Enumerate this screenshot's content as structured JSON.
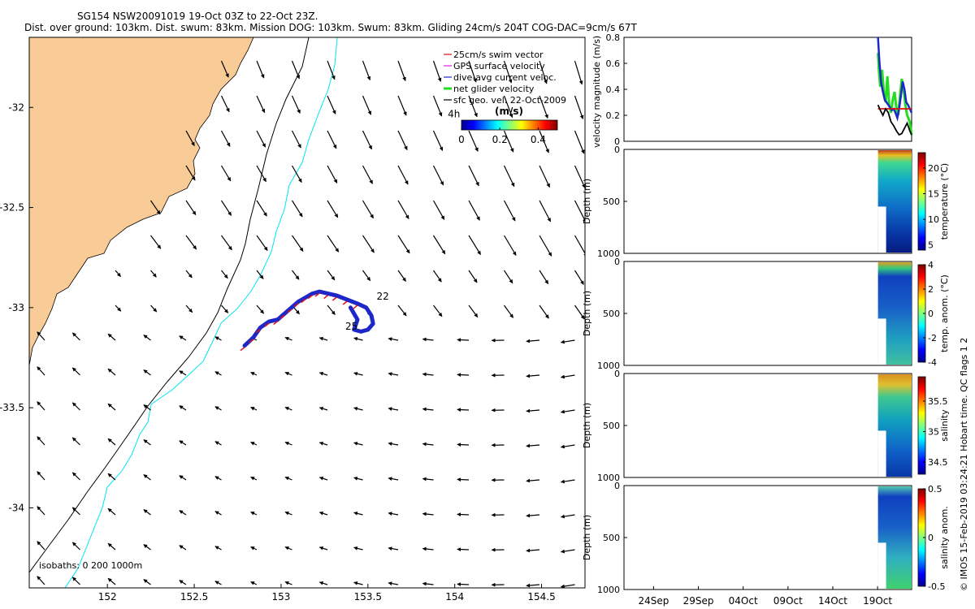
{
  "title_line1": "SG154 NSW20091019 19-Oct 03Z to 22-Oct 23Z.",
  "title_line2": "Dist. over ground: 103km. Dist. swum: 83km. Mission DOG: 103km. Swum: 83km. Gliding 24cm/s 204T COG-DAC=9cm/s 67T",
  "side_caption": "© IMOS 15-Feb-2019 03:24:21 Hobart time. QC flags 1  2",
  "colors": {
    "land": "#F9CB96",
    "isobath_shallow": "#00E5EE",
    "isobath_deep": "#000000",
    "track_blue": "#1E28C8",
    "track_red": "#DD1111",
    "green": "#22DD22"
  },
  "chart_data": [
    {
      "type": "scatter",
      "name": "map",
      "xlim": [
        151.55,
        154.75
      ],
      "ylim": [
        -34.4,
        -31.65
      ],
      "xticks": [
        "152",
        "152.5",
        "153",
        "153.5",
        "154",
        "154.5"
      ],
      "xtick_values": [
        152,
        152.5,
        153,
        153.5,
        154,
        154.5
      ],
      "yticks": [
        "-32",
        "-32.5",
        "-33",
        "-33.5",
        "-34"
      ],
      "ytick_values": [
        -32,
        -32.5,
        -33,
        -33.5,
        -34
      ],
      "legend": [
        {
          "label": "25cm/s swim vector",
          "color": "#DD1111"
        },
        {
          "label": "GPS surface velocity",
          "color": "#E020E0"
        },
        {
          "label": "dive-avg current veloc.",
          "color": "#1E28C8"
        },
        {
          "label": "net glider velocity",
          "color": "#22DD22"
        },
        {
          "label": "sfc geo. vel. 22-Oct-2009",
          "color": "#000000"
        }
      ],
      "colorbar": {
        "label": "(m/s)",
        "ticks": [
          "0",
          "0.2",
          "0.4"
        ],
        "tick_values": [
          0,
          0.2,
          0.4
        ],
        "range": [
          0,
          0.5
        ]
      },
      "isobath_label": "isobaths: 0   200  1000m",
      "track_labels": [
        {
          "text": "22",
          "lon": 153.55,
          "lat": -32.96
        },
        {
          "text": "25",
          "lon": 153.37,
          "lat": -33.11
        },
        {
          "text": "4h",
          "lon": 153.96,
          "lat": -32.05
        }
      ],
      "track": [
        [
          152.79,
          -33.19
        ],
        [
          152.84,
          -33.15
        ],
        [
          152.88,
          -33.1
        ],
        [
          152.93,
          -33.07
        ],
        [
          152.98,
          -33.06
        ],
        [
          153.02,
          -33.03
        ],
        [
          153.06,
          -33.0
        ],
        [
          153.1,
          -32.97
        ],
        [
          153.14,
          -32.95
        ],
        [
          153.18,
          -32.93
        ],
        [
          153.22,
          -32.92
        ],
        [
          153.27,
          -32.93
        ],
        [
          153.32,
          -32.94
        ],
        [
          153.38,
          -32.96
        ],
        [
          153.44,
          -32.98
        ],
        [
          153.49,
          -33.0
        ],
        [
          153.52,
          -33.04
        ],
        [
          153.53,
          -33.08
        ],
        [
          153.5,
          -33.11
        ],
        [
          153.46,
          -33.12
        ],
        [
          153.42,
          -33.11
        ],
        [
          153.44,
          -33.06
        ],
        [
          153.4,
          -33.0
        ]
      ]
    },
    {
      "type": "line",
      "name": "velocity",
      "ylabel": "velocity magnitude (m/s)",
      "ylim": [
        0,
        0.8
      ],
      "yticks": [
        "0",
        "0.2",
        "0.4",
        "0.6",
        "0.8"
      ],
      "ytick_values": [
        0,
        0.2,
        0.4,
        0.6,
        0.8
      ],
      "x_dates": [
        "24Sep",
        "29Sep",
        "04Oct",
        "09Oct",
        "14Oct",
        "19Oct"
      ],
      "x_date_days": [
        0,
        5,
        10,
        15,
        20,
        25
      ],
      "x_day_range": [
        -3.3,
        28.8
      ],
      "series": [
        {
          "name": "net glider velocity",
          "color": "#22DD22",
          "x": [
            25.05,
            25.15,
            25.3,
            25.5,
            25.7,
            25.9,
            26.1,
            26.3,
            26.5,
            26.7,
            26.9,
            27.1,
            27.3,
            27.5,
            27.7,
            27.9,
            28.1,
            28.3,
            28.6,
            28.8
          ],
          "y": [
            0.68,
            0.55,
            0.42,
            0.55,
            0.38,
            0.3,
            0.5,
            0.28,
            0.22,
            0.32,
            0.38,
            0.25,
            0.2,
            0.35,
            0.48,
            0.4,
            0.28,
            0.2,
            0.15,
            0.05
          ]
        },
        {
          "name": "dive-avg current veloc.",
          "color": "#1E28C8",
          "x": [
            25.05,
            25.2,
            25.4,
            25.6,
            25.8,
            26.0,
            26.2,
            26.4,
            26.6,
            26.8,
            27.0,
            27.2,
            27.4,
            27.6,
            27.8,
            28.0,
            28.2,
            28.4,
            28.6,
            28.8
          ],
          "y": [
            0.8,
            0.62,
            0.45,
            0.38,
            0.32,
            0.3,
            0.28,
            0.26,
            0.24,
            0.25,
            0.22,
            0.18,
            0.25,
            0.35,
            0.46,
            0.4,
            0.3,
            0.28,
            0.25,
            0.22
          ]
        },
        {
          "name": "swim",
          "color": "#DD1111",
          "x": [
            25.05,
            28.8
          ],
          "y": [
            0.25,
            0.25
          ]
        },
        {
          "name": "sfc geo",
          "color": "#000000",
          "x": [
            25.05,
            25.3,
            25.6,
            25.9,
            26.2,
            26.5,
            26.8,
            27.1,
            27.4,
            27.7,
            28.0,
            28.3,
            28.6,
            28.8
          ],
          "y": [
            0.28,
            0.24,
            0.2,
            0.25,
            0.22,
            0.15,
            0.12,
            0.08,
            0.05,
            0.06,
            0.1,
            0.14,
            0.08,
            0.05
          ]
        }
      ]
    },
    {
      "type": "heatmap",
      "name": "temperature",
      "ylabel": "Depth (m)",
      "cblabel": "temperature (°C)",
      "ylim": [
        1000,
        0
      ],
      "yticks": [
        "0",
        "500",
        "1000"
      ],
      "clim": [
        4,
        23
      ],
      "cbticks": [
        "5",
        "10",
        "15",
        "20"
      ],
      "cbtick_values": [
        5,
        10,
        15,
        20
      ]
    },
    {
      "type": "heatmap",
      "name": "temp_anom",
      "ylabel": "Depth (m)",
      "cblabel": "temp. anom. (°C)",
      "ylim": [
        1000,
        0
      ],
      "yticks": [
        "0",
        "500",
        "1000"
      ],
      "clim": [
        -4,
        4
      ],
      "cbticks": [
        "-4",
        "-2",
        "0",
        "2",
        "4"
      ],
      "cbtick_values": [
        -4,
        -2,
        0,
        2,
        4
      ]
    },
    {
      "type": "heatmap",
      "name": "salinity",
      "ylabel": "Depth (m)",
      "cblabel": "salinity",
      "ylim": [
        1000,
        0
      ],
      "yticks": [
        "0",
        "500",
        "1000"
      ],
      "clim": [
        34.3,
        35.9
      ],
      "cbticks": [
        "34.5",
        "35",
        "35.5"
      ],
      "cbtick_values": [
        34.5,
        35,
        35.5
      ]
    },
    {
      "type": "heatmap",
      "name": "sal_anom",
      "ylabel": "Depth (m)",
      "cblabel": "salinity anom.",
      "ylim": [
        1000,
        0
      ],
      "yticks": [
        "0",
        "500",
        "1000"
      ],
      "clim": [
        -0.5,
        0.5
      ],
      "cbticks": [
        "-0.5",
        "0",
        "0.5"
      ],
      "cbtick_values": [
        -0.5,
        0,
        0.5
      ]
    }
  ]
}
